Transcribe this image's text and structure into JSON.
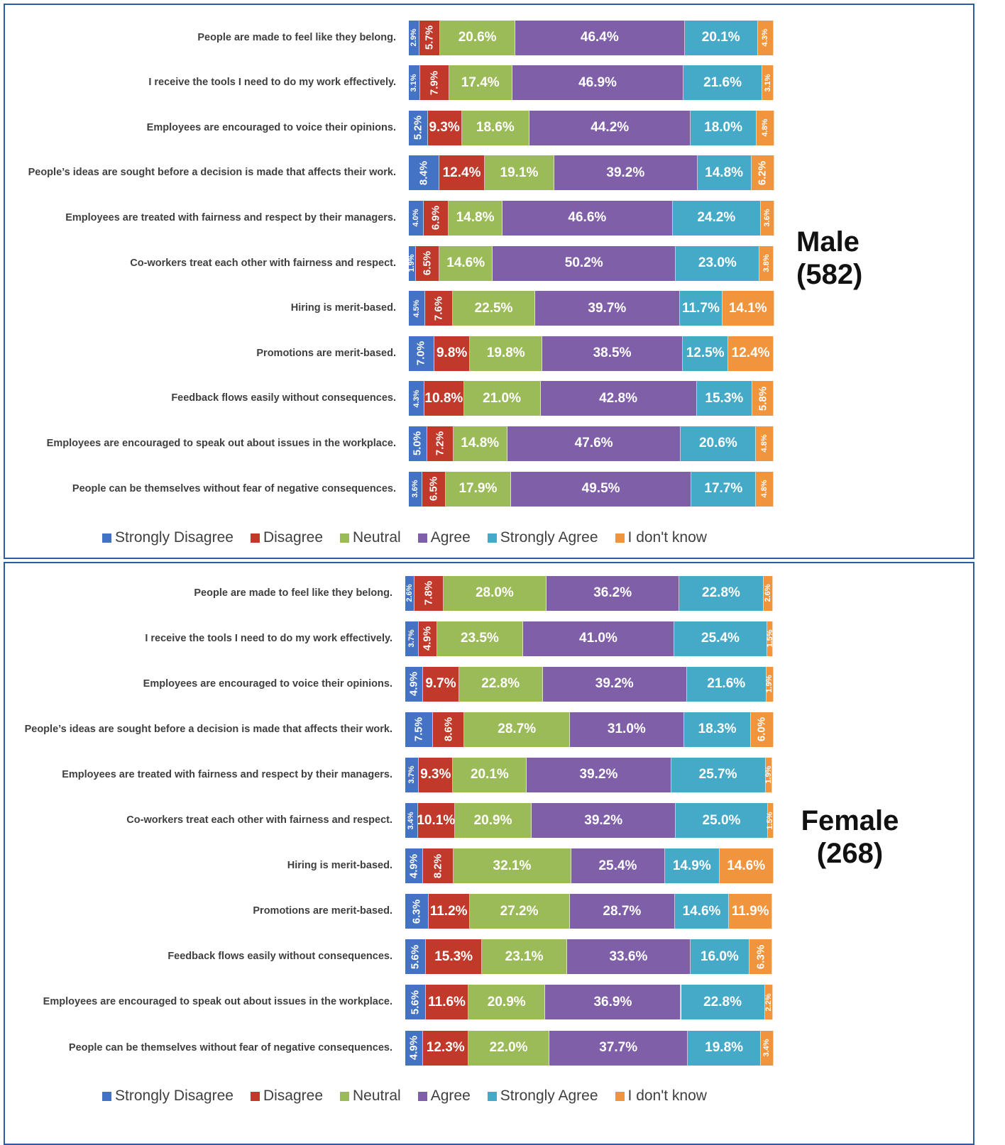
{
  "chart_data": [
    {
      "type": "stacked-bar-horizontal",
      "annotation": "Male (582)",
      "categories": [
        "People are made to feel like they belong.",
        "I receive the tools I need to do my work effectively.",
        "Employees are encouraged to voice their opinions.",
        "People’s ideas are sought before a decision is made that affects their work.",
        "Employees are treated with fairness and respect by their managers.",
        "Co-workers treat each other with fairness and respect.",
        "Hiring is merit-based.",
        "Promotions are merit-based.",
        "Feedback flows easily without consequences.",
        "Employees are encouraged to speak out about issues in the workplace.",
        "People can be themselves without fear of negative consequences."
      ],
      "series": [
        {
          "name": "Strongly Disagree",
          "color": "#4472c4",
          "values": [
            2.9,
            3.1,
            5.2,
            8.4,
            4.0,
            1.9,
            4.5,
            7.0,
            4.3,
            5.0,
            3.6
          ],
          "value_labels": [
            "2.9%",
            "3.1%",
            "5.2%",
            "8.4%",
            "4.0%",
            "1.9%",
            "4.5%",
            "7.0%",
            "4.3%",
            "5.0%",
            "3.6%"
          ]
        },
        {
          "name": "Disagree",
          "color": "#c0392b",
          "values": [
            5.7,
            7.9,
            9.3,
            12.4,
            6.9,
            6.5,
            7.6,
            9.8,
            10.8,
            7.2,
            6.5
          ],
          "value_labels": [
            "5.7%",
            "7.9%",
            "9.3%",
            "12.4%",
            "6.9%",
            "6.5%",
            "7.6%",
            "9.8%",
            "10.8%",
            "7.2%",
            "6.5%"
          ]
        },
        {
          "name": "Neutral",
          "color": "#9bbb59",
          "values": [
            20.6,
            17.4,
            18.6,
            19.1,
            14.8,
            14.6,
            22.5,
            19.8,
            21.0,
            14.8,
            17.9
          ],
          "value_labels": [
            "20.6%",
            "17.4%",
            "18.6%",
            "19.1%",
            "14.8%",
            "14.6%",
            "22.5%",
            "19.8%",
            "21.0%",
            "14.8%",
            "17.9%"
          ]
        },
        {
          "name": "Agree",
          "color": "#7f5fa8",
          "values": [
            46.4,
            46.9,
            44.2,
            39.2,
            46.6,
            50.2,
            39.7,
            38.5,
            42.8,
            47.6,
            49.5
          ],
          "value_labels": [
            "46.4%",
            "46.9%",
            "44.2%",
            "39.2%",
            "46.6%",
            "50.2%",
            "39.7%",
            "38.5%",
            "42.8%",
            "47.6%",
            "49.5%"
          ]
        },
        {
          "name": "Strongly Agree",
          "color": "#45aac8",
          "values": [
            20.1,
            21.6,
            18.0,
            14.8,
            24.2,
            23.0,
            11.7,
            12.5,
            15.3,
            20.6,
            17.7
          ],
          "value_labels": [
            "20.1%",
            "21.6%",
            "18.0%",
            "14.8%",
            "24.2%",
            "23.0%",
            "11.7%",
            "12.5%",
            "15.3%",
            "20.6%",
            "17.7%"
          ]
        },
        {
          "name": "I don't know",
          "color": "#f0943e",
          "values": [
            4.3,
            3.1,
            4.8,
            6.2,
            3.6,
            3.8,
            14.1,
            12.4,
            5.8,
            4.8,
            4.8
          ],
          "value_labels": [
            "4.3%",
            "3.1%",
            "4.8%",
            "6.2%",
            "3.6%",
            "3.8%",
            "14.1%",
            "12.4%",
            "5.8%",
            "4.8%",
            "4.8%"
          ]
        }
      ]
    },
    {
      "type": "stacked-bar-horizontal",
      "annotation": "Female (268)",
      "categories": [
        "People are made to feel like they belong.",
        "I receive the tools I need to do my work effectively.",
        "Employees are encouraged to voice their opinions.",
        "People’s ideas are sought before a decision is made that affects their work.",
        "Employees are treated with fairness and respect by their managers.",
        "Co-workers treat each other with fairness and respect.",
        "Hiring is merit-based.",
        "Promotions are merit-based.",
        "Feedback flows easily without consequences.",
        "Employees are encouraged to speak out about issues in the workplace.",
        "People can be themselves without fear of negative consequences."
      ],
      "series": [
        {
          "name": "Strongly Disagree",
          "color": "#4472c4",
          "values": [
            2.6,
            3.7,
            4.9,
            7.5,
            3.7,
            3.4,
            4.9,
            6.3,
            5.6,
            5.6,
            4.9
          ],
          "value_labels": [
            "2.6%",
            "3.7%",
            "4.9%",
            "7.5%",
            "3.7%",
            "3.4%",
            "4.9%",
            "6.3%",
            "5.6%",
            "5.6%",
            "4.9%"
          ]
        },
        {
          "name": "Disagree",
          "color": "#c0392b",
          "values": [
            7.8,
            4.9,
            9.7,
            8.6,
            9.3,
            10.1,
            8.2,
            11.2,
            15.3,
            11.6,
            12.3
          ],
          "value_labels": [
            "7.8%",
            "4.9%",
            "9.7%",
            "8.6%",
            "9.3%",
            "10.1%",
            "8.2%",
            "11.2%",
            "15.3%",
            "11.6%",
            "12.3%"
          ]
        },
        {
          "name": "Neutral",
          "color": "#9bbb59",
          "values": [
            28.0,
            23.5,
            22.8,
            28.7,
            20.1,
            20.9,
            32.1,
            27.2,
            23.1,
            20.9,
            22.0
          ],
          "value_labels": [
            "28.0%",
            "23.5%",
            "22.8%",
            "28.7%",
            "20.1%",
            "20.9%",
            "32.1%",
            "27.2%",
            "23.1%",
            "20.9%",
            "22.0%"
          ]
        },
        {
          "name": "Agree",
          "color": "#7f5fa8",
          "values": [
            36.2,
            41.0,
            39.2,
            31.0,
            39.2,
            39.2,
            25.4,
            28.7,
            33.6,
            36.9,
            37.7
          ],
          "value_labels": [
            "36.2%",
            "41.0%",
            "39.2%",
            "31.0%",
            "39.2%",
            "39.2%",
            "25.4%",
            "28.7%",
            "33.6%",
            "36.9%",
            "37.7%"
          ]
        },
        {
          "name": "Strongly Agree",
          "color": "#45aac8",
          "values": [
            22.8,
            25.4,
            21.6,
            18.3,
            25.7,
            25.0,
            14.9,
            14.6,
            16.0,
            22.8,
            19.8
          ],
          "value_labels": [
            "22.8%",
            "25.4%",
            "21.6%",
            "18.3%",
            "25.7%",
            "25.0%",
            "14.9%",
            "14.6%",
            "16.0%",
            "22.8%",
            "19.8%"
          ]
        },
        {
          "name": "I don't know",
          "color": "#f0943e",
          "values": [
            2.6,
            1.5,
            1.9,
            6.0,
            1.9,
            1.5,
            14.6,
            11.9,
            6.3,
            2.2,
            3.4
          ],
          "value_labels": [
            "2.6%",
            "1.5%",
            "1.9%",
            "6.0%",
            "1.9%",
            "1.5%",
            "14.6%",
            "11.9%",
            "6.3%",
            "2.2%",
            "3.4%"
          ]
        }
      ]
    }
  ]
}
